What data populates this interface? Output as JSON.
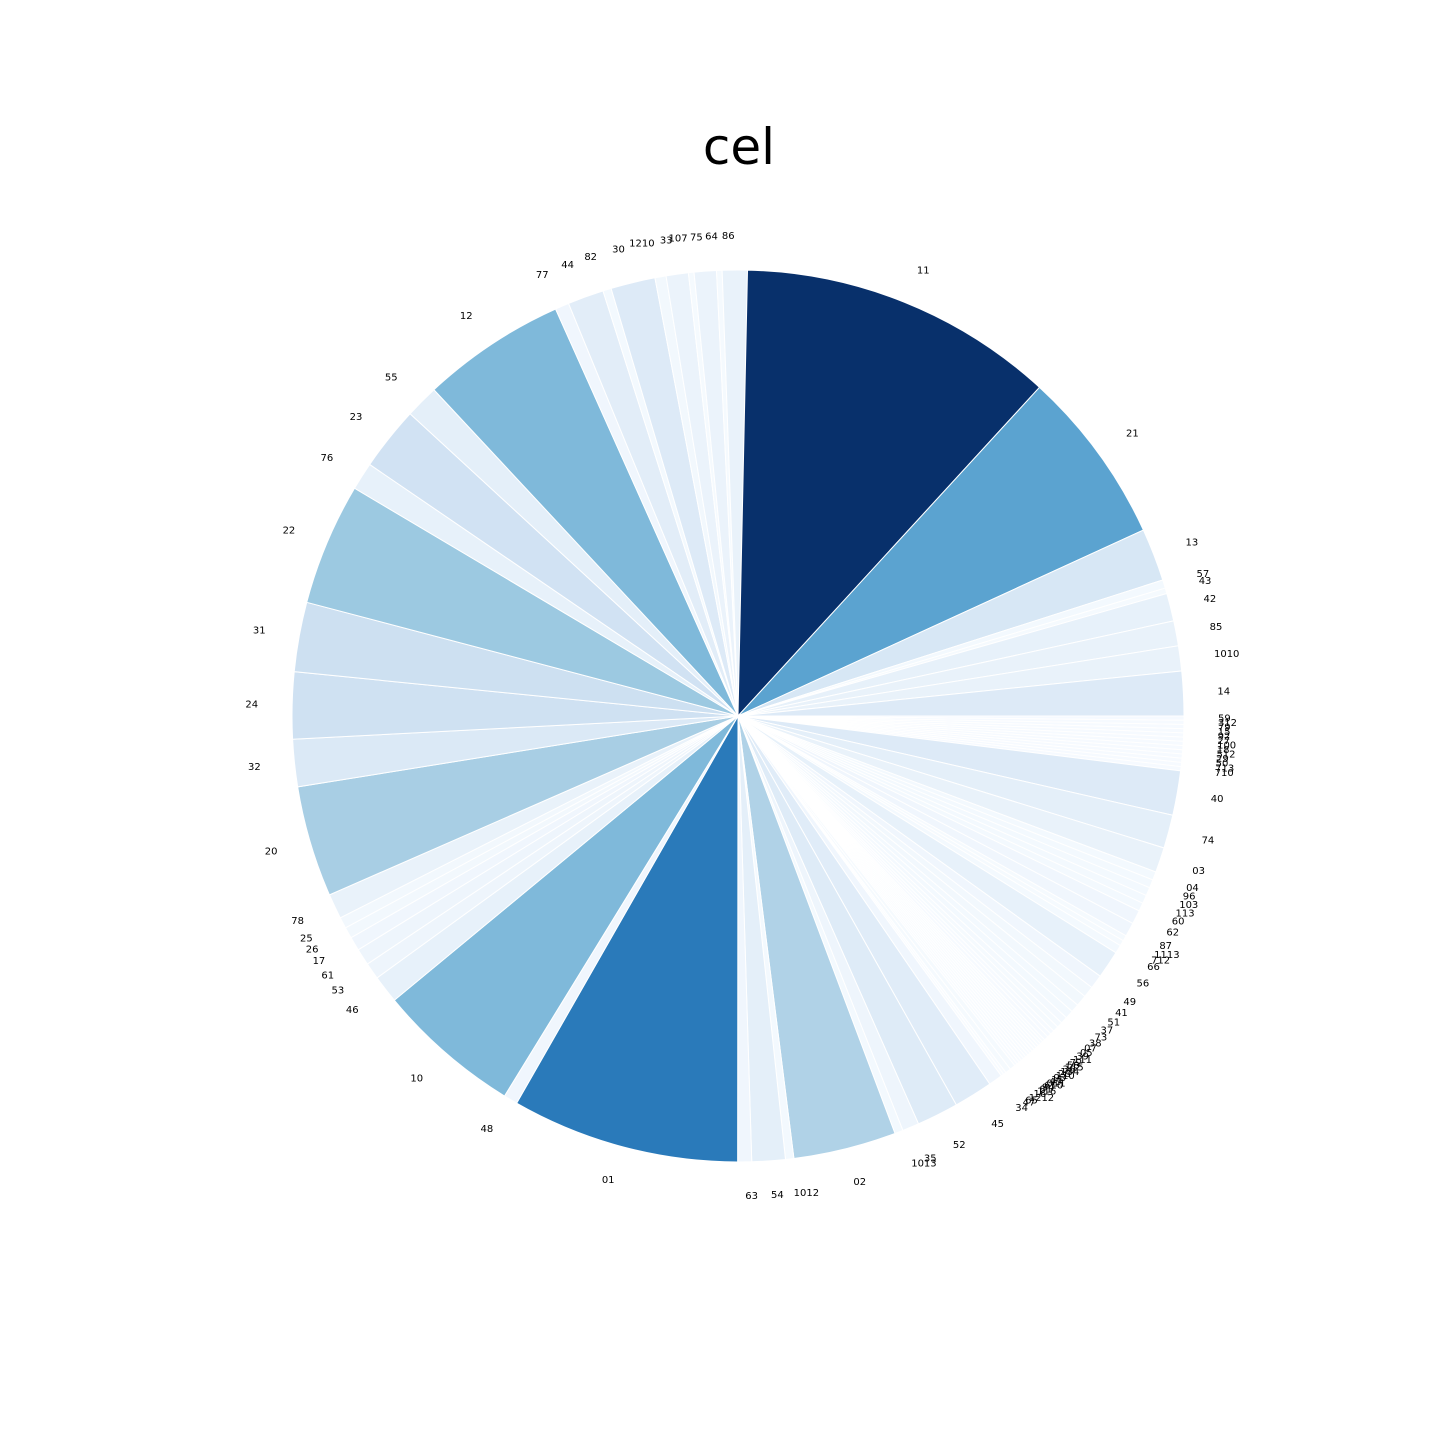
{
  "chart_data": {
    "type": "pie",
    "title": "cel",
    "start_angle_deg": 0,
    "direction": "clockwise",
    "colormap": "Blues",
    "slices": [
      {
        "label": "59",
        "value": 0.15
      },
      {
        "label": "312",
        "value": 0.15
      },
      {
        "label": "79",
        "value": 0.15
      },
      {
        "label": "15",
        "value": 0.15
      },
      {
        "label": "92",
        "value": 0.15
      },
      {
        "label": "27",
        "value": 0.15
      },
      {
        "label": "100",
        "value": 0.15
      },
      {
        "label": "18",
        "value": 0.15
      },
      {
        "label": "512",
        "value": 0.15
      },
      {
        "label": "29",
        "value": 0.15
      },
      {
        "label": "50",
        "value": 0.15
      },
      {
        "label": "713",
        "value": 0.15
      },
      {
        "label": "710",
        "value": 0.15
      },
      {
        "label": "40",
        "value": 1.6
      },
      {
        "label": "74",
        "value": 1.2
      },
      {
        "label": "03",
        "value": 0.9
      },
      {
        "label": "04",
        "value": 0.3
      },
      {
        "label": "96",
        "value": 0.3
      },
      {
        "label": "103",
        "value": 0.3
      },
      {
        "label": "113",
        "value": 0.3
      },
      {
        "label": "60",
        "value": 0.3
      },
      {
        "label": "62",
        "value": 0.5
      },
      {
        "label": "87",
        "value": 0.5
      },
      {
        "label": "1113",
        "value": 0.2
      },
      {
        "label": "712",
        "value": 0.2
      },
      {
        "label": "66",
        "value": 0.3
      },
      {
        "label": "56",
        "value": 1.0
      },
      {
        "label": "49",
        "value": 0.5
      },
      {
        "label": "41",
        "value": 0.4
      },
      {
        "label": "51",
        "value": 0.4
      },
      {
        "label": "37",
        "value": 0.3
      },
      {
        "label": "73",
        "value": 0.3
      },
      {
        "label": "38",
        "value": 0.25
      },
      {
        "label": "07",
        "value": 0.2
      },
      {
        "label": "05",
        "value": 0.2
      },
      {
        "label": "39",
        "value": 0.15
      },
      {
        "label": "111",
        "value": 0.15
      },
      {
        "label": "72",
        "value": 0.15
      },
      {
        "label": "58",
        "value": 0.1
      },
      {
        "label": "115",
        "value": 0.1
      },
      {
        "label": "36",
        "value": 0.1
      },
      {
        "label": "134",
        "value": 0.1
      },
      {
        "label": "28",
        "value": 0.1
      },
      {
        "label": "110",
        "value": 0.1
      },
      {
        "label": "93",
        "value": 0.1
      },
      {
        "label": "11",
        "value": 0.1
      },
      {
        "label": "43",
        "value": 0.1
      },
      {
        "label": "011",
        "value": 0.1
      },
      {
        "label": "610",
        "value": 0.1
      },
      {
        "label": "94",
        "value": 0.1
      },
      {
        "label": "81",
        "value": 0.1
      },
      {
        "label": "116",
        "value": 0.1
      },
      {
        "label": "16",
        "value": 0.2
      },
      {
        "label": "1212",
        "value": 0.2
      },
      {
        "label": "65",
        "value": 0.1
      },
      {
        "label": "47",
        "value": 0.1
      },
      {
        "label": "34",
        "value": 0.5
      },
      {
        "label": "45",
        "value": 1.4
      },
      {
        "label": "52",
        "value": 1.5
      },
      {
        "label": "35",
        "value": 0.6
      },
      {
        "label": "1013",
        "value": 0.3
      },
      {
        "label": "02",
        "value": 3.7
      },
      {
        "label": "1012",
        "value": 0.3
      },
      {
        "label": "54",
        "value": 1.2
      },
      {
        "label": "63",
        "value": 0.5
      },
      {
        "label": "01",
        "value": 8.2
      },
      {
        "label": "48",
        "value": 0.5
      },
      {
        "label": "10",
        "value": 5.2
      },
      {
        "label": "46",
        "value": 1.0
      },
      {
        "label": "53",
        "value": 0.6
      },
      {
        "label": "61",
        "value": 0.6
      },
      {
        "label": "17",
        "value": 0.5
      },
      {
        "label": "26",
        "value": 0.4
      },
      {
        "label": "25",
        "value": 0.4
      },
      {
        "label": "78",
        "value": 0.9
      },
      {
        "label": "20",
        "value": 4.0
      },
      {
        "label": "32",
        "value": 1.7
      },
      {
        "label": "24",
        "value": 2.4
      },
      {
        "label": "31",
        "value": 2.5
      },
      {
        "label": "22",
        "value": 4.4
      },
      {
        "label": "76",
        "value": 1.0
      },
      {
        "label": "23",
        "value": 2.3
      },
      {
        "label": "55",
        "value": 1.2
      },
      {
        "label": "12",
        "value": 5.2
      },
      {
        "label": "77",
        "value": 0.5
      },
      {
        "label": "44",
        "value": 1.3
      },
      {
        "label": "82",
        "value": 0.3
      },
      {
        "label": "30",
        "value": 1.6
      },
      {
        "label": "1210",
        "value": 0.4
      },
      {
        "label": "33",
        "value": 0.8
      },
      {
        "label": "107",
        "value": 0.2
      },
      {
        "label": "75",
        "value": 0.8
      },
      {
        "label": "64",
        "value": 0.2
      },
      {
        "label": "86",
        "value": 0.9
      },
      {
        "label": "11",
        "value": 11.4
      },
      {
        "label": "21",
        "value": 6.3
      },
      {
        "label": "13",
        "value": 1.9
      },
      {
        "label": "57",
        "value": 0.3
      },
      {
        "label": "43",
        "value": 0.2
      },
      {
        "label": "42",
        "value": 1.0
      },
      {
        "label": "85",
        "value": 0.9
      },
      {
        "label": "1010",
        "value": 0.9
      },
      {
        "label": "14",
        "value": 1.6
      }
    ]
  }
}
